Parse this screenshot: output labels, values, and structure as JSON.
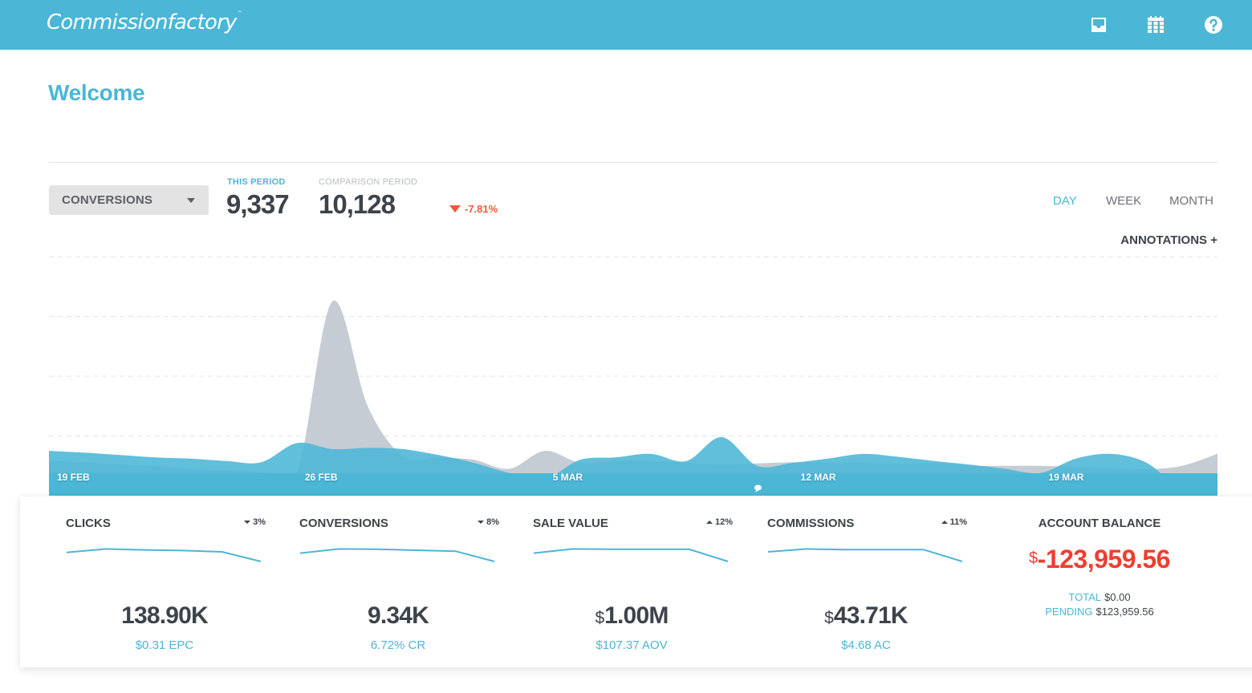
{
  "header": {
    "logo_text": "Commissionfactory",
    "logo_mark": "™",
    "icons": [
      {
        "name": "inbox-icon"
      },
      {
        "name": "calendar-icon"
      },
      {
        "name": "help-icon"
      }
    ]
  },
  "page": {
    "title": "Welcome"
  },
  "controls": {
    "metric_select": "CONVERSIONS",
    "this_period_label": "THIS PERIOD",
    "this_period_value": "9,337",
    "comparison_period_label": "COMPARISON PERIOD",
    "comparison_period_value": "10,128",
    "delta": "-7.81%",
    "ranges": [
      "DAY",
      "WEEK",
      "MONTH"
    ],
    "active_range": "DAY",
    "annotations_label": "ANNOTATIONS +"
  },
  "colors": {
    "brand": "#4bb6d6",
    "current_fill": "#4bb6d6",
    "comparison_fill": "#c6ccd3",
    "negative": "#ef5a3a",
    "balance_negative": "#ef3e2f"
  },
  "chart_data": {
    "type": "area",
    "title": "",
    "xlabel": "",
    "ylabel": "",
    "grid": true,
    "y_gridlines": 4,
    "ylim": [
      0,
      4
    ],
    "x_tick_labels": [
      "19 FEB",
      "26 FEB",
      "5 MAR",
      "12 MAR",
      "19 MAR"
    ],
    "x_tick_index": [
      0,
      7,
      14,
      21,
      28
    ],
    "series": [
      {
        "name": "Comparison period",
        "values": [
          0.58,
          0.56,
          0.52,
          0.5,
          0.45,
          0.42,
          0.4,
          0.38,
          3.25,
          1.5,
          0.66,
          0.64,
          0.6,
          0.45,
          0.75,
          0.55,
          0.58,
          0.58,
          0.55,
          0.52,
          0.54,
          0.56,
          0.55,
          0.55,
          0.53,
          0.54,
          0.5,
          0.5,
          0.5,
          0.48,
          0.46,
          0.44,
          0.5,
          0.7
        ]
      },
      {
        "name": "This period",
        "values": [
          0.75,
          0.72,
          0.68,
          0.64,
          0.62,
          0.58,
          0.56,
          0.88,
          0.78,
          0.8,
          0.78,
          0.68,
          0.55,
          0.38,
          0.28,
          0.6,
          0.64,
          0.7,
          0.58,
          0.98,
          0.5,
          0.55,
          0.62,
          0.7,
          0.65,
          0.58,
          0.52,
          0.45,
          0.38,
          0.62,
          0.7,
          0.55,
          0.1,
          0.0
        ]
      }
    ],
    "annotation_marker_index": 20
  },
  "stats": [
    {
      "title": "CLICKS",
      "direction": "down",
      "change": "3%",
      "currency": "",
      "value": "138.90K",
      "sub": "$0.31 EPC",
      "spark": [
        0.4,
        0.95,
        0.8,
        0.7,
        0.5,
        -1.0
      ]
    },
    {
      "title": "CONVERSIONS",
      "direction": "down",
      "change": "8%",
      "currency": "",
      "value": "9.34K",
      "sub": "6.72% CR",
      "spark": [
        0.3,
        0.95,
        0.9,
        0.75,
        0.6,
        -1.0
      ]
    },
    {
      "title": "SALE VALUE",
      "direction": "up",
      "change": "12%",
      "currency": "$",
      "value": "1.00M",
      "sub": "$107.37 AOV",
      "spark": [
        0.3,
        0.95,
        0.9,
        0.9,
        0.9,
        -1.0
      ]
    },
    {
      "title": "COMMISSIONS",
      "direction": "up",
      "change": "11%",
      "currency": "$",
      "value": "43.71K",
      "sub": "$4.68 AC",
      "spark": [
        0.5,
        0.95,
        0.85,
        0.85,
        0.85,
        -1.0
      ]
    }
  ],
  "balance": {
    "title": "ACCOUNT BALANCE",
    "currency": "$",
    "amount": "-123,959.56",
    "total_label": "TOTAL",
    "total_value": "$0.00",
    "pending_label": "PENDING",
    "pending_value": "$123,959.56"
  }
}
